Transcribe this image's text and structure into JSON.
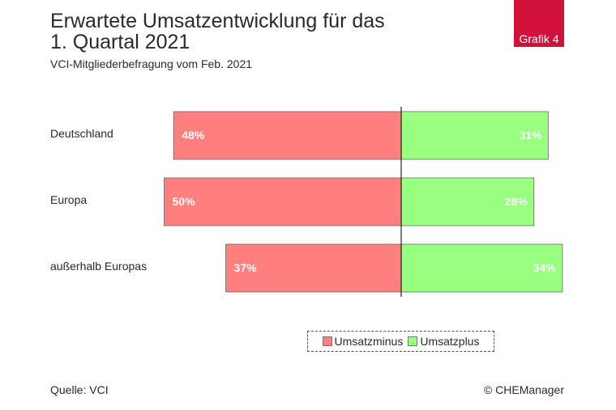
{
  "header": {
    "title_line1": "Erwartete Umsatzentwicklung für das",
    "title_line2": "1. Quartal 2021",
    "subtitle": "VCI-Mitgliederbefragung vom Feb. 2021",
    "badge": "Grafik 4"
  },
  "footer": {
    "source": "Quelle: VCI",
    "copyright": "© CHEManager"
  },
  "colors": {
    "minus": "#ff7f7f",
    "plus": "#99ff80",
    "badge": "#d2113a"
  },
  "chart_data": {
    "type": "bar",
    "orientation": "horizontal-diverging",
    "title": "Erwartete Umsatzentwicklung für das 1. Quartal 2021",
    "subtitle": "VCI-Mitgliederbefragung vom Feb. 2021",
    "categories": [
      "Deutschland",
      "Europa",
      "außerhalb Europas"
    ],
    "series": [
      {
        "name": "Umsatzminus",
        "values": [
          48,
          50,
          37
        ],
        "labels": [
          "48%",
          "50%",
          "37%"
        ]
      },
      {
        "name": "Umsatzplus",
        "values": [
          31,
          28,
          34
        ],
        "labels": [
          "31%",
          "28%",
          "34%"
        ]
      }
    ],
    "unit": "%",
    "xlim": [
      -50,
      34
    ],
    "grid": false,
    "legend_position": "bottom-center"
  }
}
